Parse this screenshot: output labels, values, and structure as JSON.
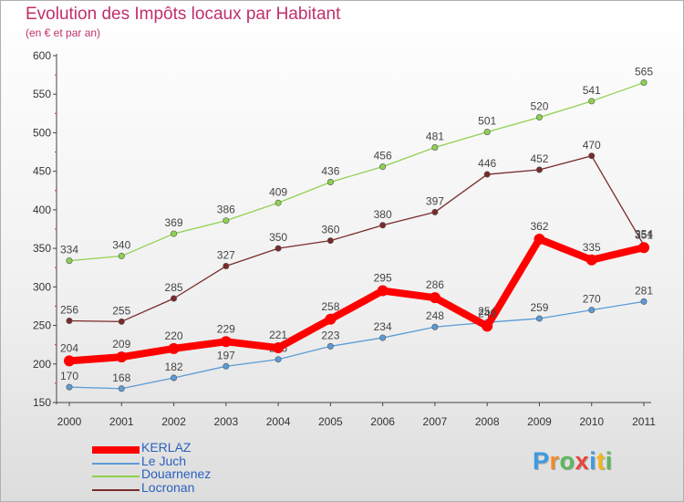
{
  "chart_data": {
    "type": "line",
    "title": "Evolution des Impôts locaux par Habitant",
    "subtitle": "(en € et par an)",
    "x": [
      "2000",
      "2001",
      "2002",
      "2003",
      "2004",
      "2005",
      "2006",
      "2007",
      "2008",
      "2009",
      "2010",
      "2011"
    ],
    "ylim": [
      150,
      600
    ],
    "yticks": [
      150,
      200,
      250,
      300,
      350,
      400,
      450,
      500,
      550,
      600
    ],
    "xlabel": "",
    "ylabel": "",
    "grid": false,
    "legend_position": "bottom-left",
    "series": [
      {
        "name": "Le Juch",
        "color": "#5b9bd5",
        "values": [
          170,
          168,
          182,
          197,
          206,
          223,
          234,
          248,
          254,
          259,
          270,
          281
        ],
        "labels": [
          "170",
          "168",
          "182",
          "197",
          "206",
          "223",
          "234",
          "248",
          "254",
          "259",
          "270",
          "281"
        ]
      },
      {
        "name": "Douarnenez",
        "color": "#8fd14f",
        "values": [
          334,
          340,
          369,
          386,
          409,
          436,
          456,
          481,
          501,
          520,
          541,
          565
        ],
        "labels": [
          "334",
          "340",
          "369",
          "386",
          "409",
          "436",
          "456",
          "481",
          "501",
          "520",
          "541",
          "565"
        ]
      },
      {
        "name": "Locronan",
        "color": "#7a2a2a",
        "values": [
          256,
          255,
          285,
          327,
          350,
          360,
          380,
          397,
          446,
          452,
          470,
          354
        ],
        "labels": [
          "256",
          "255",
          "285",
          "327",
          "350",
          "360",
          "380",
          "397",
          "446",
          "452",
          "470",
          "354"
        ]
      },
      {
        "name": "KERLAZ",
        "color": "#ff0000",
        "values": [
          204,
          209,
          220,
          229,
          221,
          258,
          295,
          286,
          249,
          362,
          335,
          351
        ],
        "labels": [
          "204",
          "209",
          "220",
          "229",
          "221",
          "258",
          "295",
          "286",
          "249",
          "362",
          "335",
          "351"
        ]
      }
    ]
  },
  "legend": [
    {
      "label": "KERLAZ",
      "color": "#ff0000"
    },
    {
      "label": "Le Juch",
      "color": "#5b9bd5"
    },
    {
      "label": "Douarnenez",
      "color": "#8fd14f"
    },
    {
      "label": "Locronan",
      "color": "#7a2a2a"
    }
  ],
  "logo": {
    "letters": [
      "P",
      "r",
      "o",
      "x",
      "i",
      "t",
      "i"
    ],
    "colors": [
      "#3d9be0",
      "#f28c28",
      "#5cb85c",
      "#e8453c",
      "#3d9be0",
      "#f2b51d",
      "#5cb85c"
    ]
  }
}
